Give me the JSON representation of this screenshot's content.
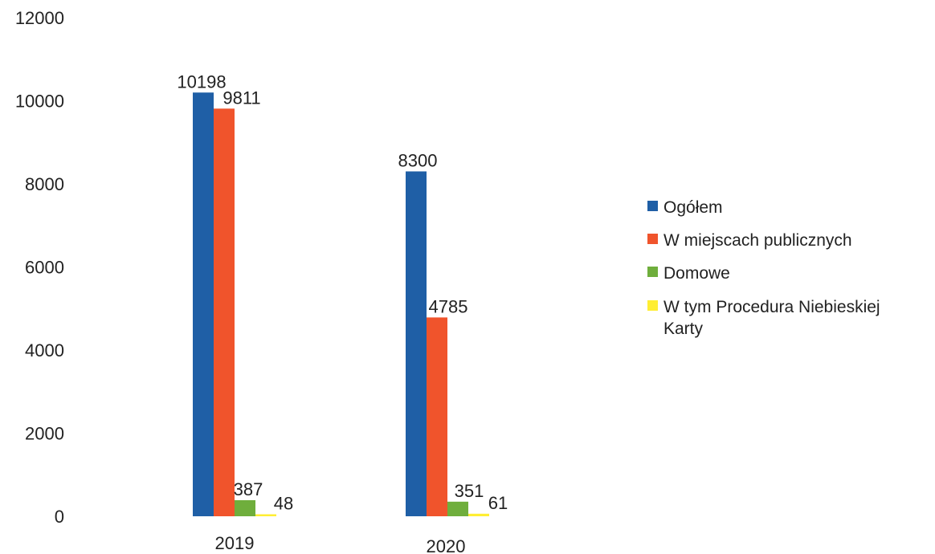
{
  "chart_data": {
    "type": "bar",
    "title": "",
    "xlabel": "",
    "ylabel": "",
    "categories": [
      "2019",
      "2020"
    ],
    "ylim": [
      0,
      12000
    ],
    "yticks": [
      0,
      2000,
      4000,
      6000,
      8000,
      10000,
      12000
    ],
    "grid": false,
    "legend_position": "right",
    "series": [
      {
        "name": "Ogółem",
        "color": "#1f5fa6",
        "values": [
          10198,
          8300
        ]
      },
      {
        "name": "W miejscach publicznych",
        "color": "#f0542c",
        "values": [
          9811,
          4785
        ]
      },
      {
        "name": "Domowe",
        "color": "#6fae3c",
        "values": [
          387,
          351
        ]
      },
      {
        "name": "W tym Procedura Niebieskiej Karty",
        "name_lines": [
          "W tym Procedura Niebieskiej",
          "Karty"
        ],
        "color": "#ffee33",
        "values": [
          48,
          61
        ]
      }
    ]
  }
}
